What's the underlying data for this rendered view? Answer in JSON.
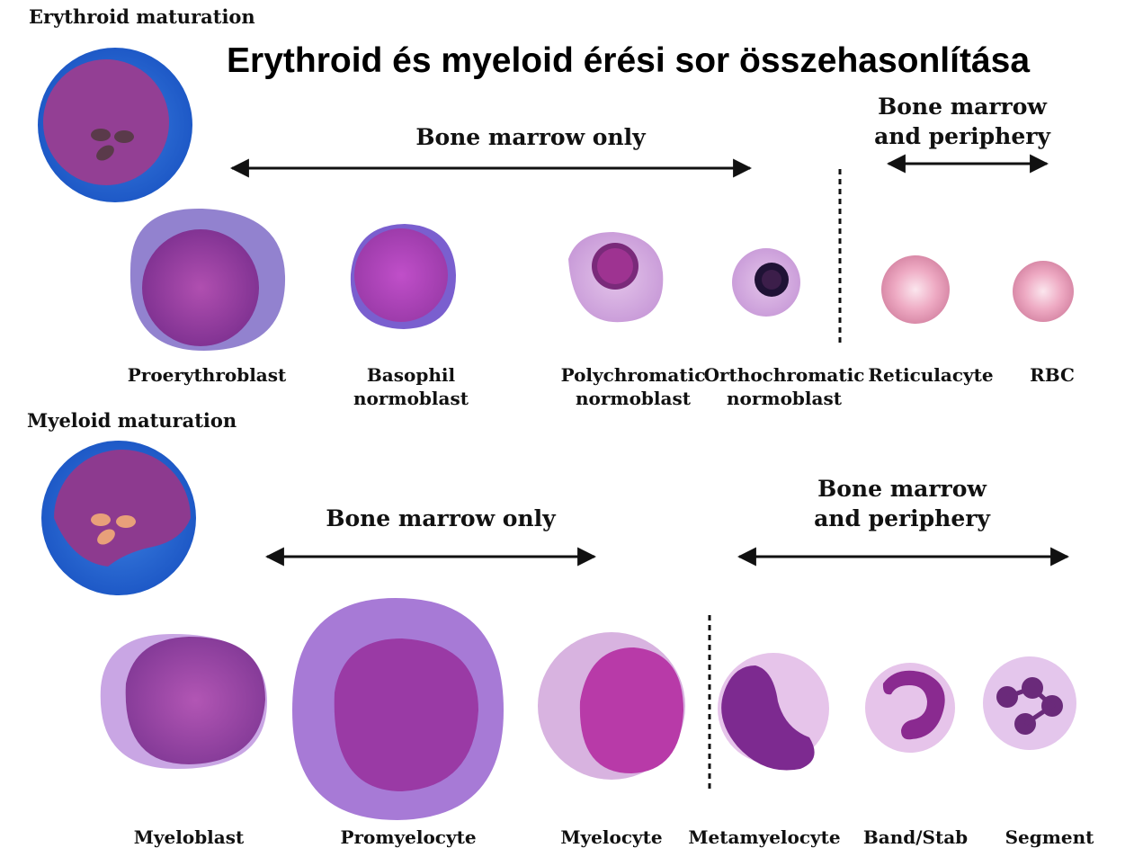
{
  "title": "Erythroid és myeloid érési sor összehasonlítása",
  "erythroid": {
    "section_label": "Erythroid maturation",
    "region_marrow": "Bone marrow only",
    "region_periphery_line1": "Bone marrow",
    "region_periphery_line2": "and periphery",
    "cells": [
      {
        "line1": "Proerythroblast",
        "line2": ""
      },
      {
        "line1": "Basophil",
        "line2": "normoblast"
      },
      {
        "line1": "Polychromatic",
        "line2": "normoblast"
      },
      {
        "line1": "Orthochromatic",
        "line2": "normoblast"
      },
      {
        "line1": "Reticulacyte",
        "line2": ""
      },
      {
        "line1": "RBC",
        "line2": ""
      }
    ]
  },
  "myeloid": {
    "section_label": "Myeloid maturation",
    "region_marrow": "Bone marrow only",
    "region_periphery_line1": "Bone marrow",
    "region_periphery_line2": "and periphery",
    "cells": [
      {
        "line1": "Myeloblast"
      },
      {
        "line1": "Promyelocyte"
      },
      {
        "line1": "Myelocyte"
      },
      {
        "line1": "Metamyelocyte"
      },
      {
        "line1": "Band/Stab"
      },
      {
        "line1": "Segment"
      }
    ]
  },
  "colors": {
    "cytoplasm_blue": "#2f6fd6",
    "nucleus_purple": "#8a3a8c",
    "cell_pink": "#e7a6bf",
    "nucleolus_dark": "#5a3a4a",
    "nucleolus_salmon": "#e8a07a"
  }
}
